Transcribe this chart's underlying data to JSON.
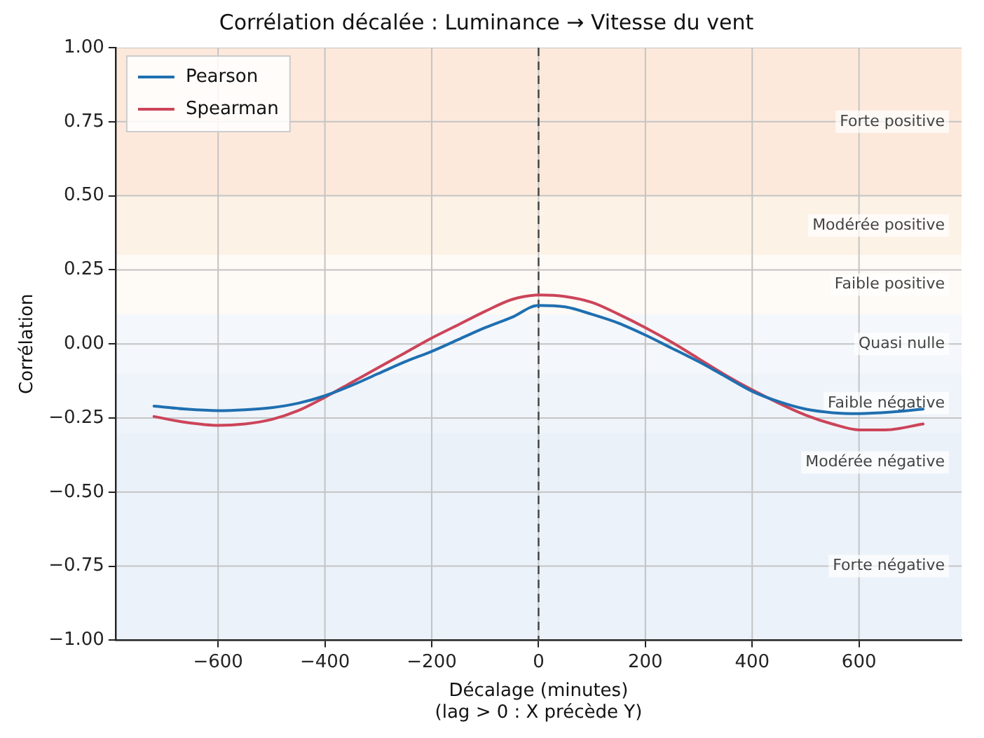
{
  "chart_data": {
    "type": "line",
    "title": "Corrélation décalée : Luminance → Vitesse du vent",
    "xlabel": "Décalage (minutes)\n(lag > 0 : X précède Y)",
    "ylabel": "Corrélation",
    "series": [
      {
        "name": "Pearson",
        "color": "#1f6fb0",
        "x": [
          -720,
          -660,
          -600,
          -550,
          -500,
          -450,
          -400,
          -350,
          -300,
          -250,
          -200,
          -150,
          -100,
          -50,
          0,
          50,
          100,
          150,
          200,
          250,
          300,
          350,
          400,
          450,
          500,
          550,
          600,
          660,
          720
        ],
        "values": [
          -0.21,
          -0.22,
          -0.225,
          -0.222,
          -0.215,
          -0.2,
          -0.175,
          -0.14,
          -0.1,
          -0.06,
          -0.025,
          0.015,
          0.055,
          0.09,
          0.13,
          0.125,
          0.1,
          0.07,
          0.03,
          -0.015,
          -0.06,
          -0.11,
          -0.16,
          -0.195,
          -0.22,
          -0.232,
          -0.235,
          -0.23,
          -0.22
        ]
      },
      {
        "name": "Spearman",
        "color": "#cc4459",
        "x": [
          -720,
          -660,
          -600,
          -550,
          -500,
          -450,
          -400,
          -350,
          -300,
          -250,
          -200,
          -150,
          -100,
          -50,
          0,
          50,
          100,
          150,
          200,
          250,
          300,
          350,
          400,
          450,
          500,
          550,
          600,
          650,
          720
        ],
        "values": [
          -0.245,
          -0.265,
          -0.275,
          -0.27,
          -0.255,
          -0.225,
          -0.18,
          -0.13,
          -0.08,
          -0.03,
          0.02,
          0.065,
          0.11,
          0.15,
          0.165,
          0.16,
          0.14,
          0.1,
          0.055,
          0.005,
          -0.05,
          -0.105,
          -0.155,
          -0.2,
          -0.24,
          -0.27,
          -0.29,
          -0.29,
          -0.27
        ]
      }
    ],
    "xlim": [
      -792,
      792
    ],
    "xticks": [
      {
        "value": -600,
        "label": "−600"
      },
      {
        "value": -400,
        "label": "−400"
      },
      {
        "value": -200,
        "label": "−200"
      },
      0,
      200,
      400,
      600
    ],
    "ylim": [
      -1,
      1
    ],
    "yticks": [
      {
        "value": -1,
        "label": "−1.00"
      },
      {
        "value": -0.75,
        "label": "−0.75"
      },
      {
        "value": -0.5,
        "label": "−0.50"
      },
      {
        "value": -0.25,
        "label": "−0.25"
      },
      {
        "value": 0,
        "label": "0.00"
      },
      {
        "value": 0.25,
        "label": "0.25"
      },
      {
        "value": 0.5,
        "label": "0.50"
      },
      {
        "value": 0.75,
        "label": "0.75"
      },
      {
        "value": 1,
        "label": "1.00"
      }
    ],
    "ref_lines": [
      {
        "axis": "x",
        "value": 0,
        "color": "#444444",
        "line_style": "dashed"
      }
    ],
    "bands": [
      {
        "axis": "y",
        "from": 0.5,
        "to": 1,
        "label": "Forte positive",
        "color": "#fde9dc"
      },
      {
        "axis": "y",
        "from": 0.3,
        "to": 0.5,
        "label": "Modérée positive",
        "color": "#fdf2e6"
      },
      {
        "axis": "y",
        "from": 0.1,
        "to": 0.3,
        "label": "Faible positive",
        "color": "#fefaf6"
      },
      {
        "axis": "y",
        "from": -0.1,
        "to": 0.1,
        "label": "Quasi nulle",
        "color": "#f4f7fb"
      },
      {
        "axis": "y",
        "from": -0.3,
        "to": -0.1,
        "label": "Faible négative",
        "color": "#eff4fa"
      },
      {
        "axis": "y",
        "from": -0.5,
        "to": -0.3,
        "label": "Modérée négative",
        "color": "#eaf1f9"
      },
      {
        "axis": "y",
        "from": -1,
        "to": -0.5,
        "label": "Forte négative",
        "color": "#ebf2f9"
      }
    ],
    "grid": true,
    "legend": "top left",
    "marker": "none",
    "line_style": "solid"
  }
}
